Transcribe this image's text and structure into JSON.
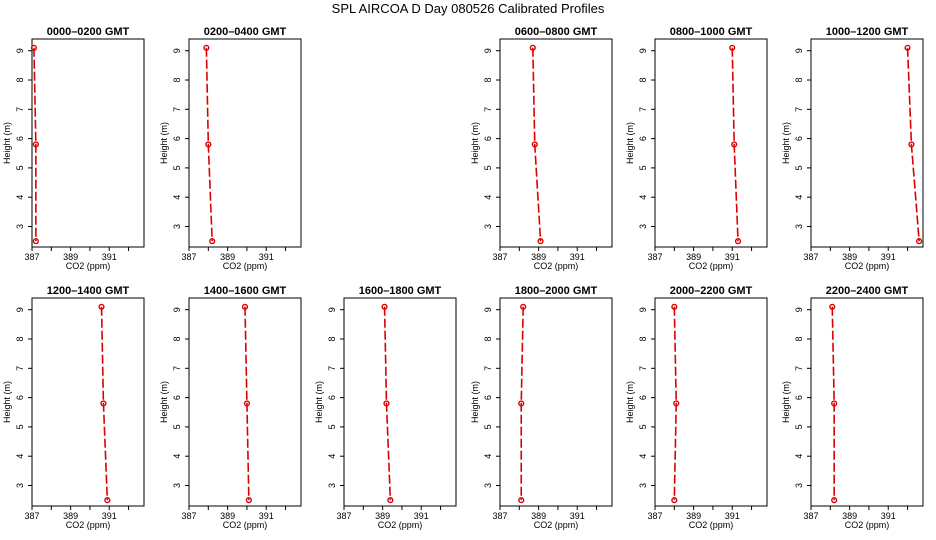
{
  "title": "SPL AIRCOA D  Day 080526  Calibrated Profiles",
  "chart_data": {
    "type": "line",
    "layout": "2x6 panel grid",
    "xlabel": "CO2 (ppm)",
    "ylabel": "Height (m)",
    "xlim": [
      387,
      392.8
    ],
    "ylim": [
      2.3,
      9.4
    ],
    "x_ticks": [
      387,
      388,
      389,
      390,
      391,
      392
    ],
    "x_tick_labels": [
      "387",
      "389",
      "391"
    ],
    "y_ticks": [
      3,
      4,
      5,
      6,
      7,
      8,
      9
    ],
    "line_color": "#dd0000",
    "panels": [
      {
        "title": "0000–0200 GMT",
        "points": [
          {
            "x": 387.1,
            "y": 9.1
          },
          {
            "x": 387.2,
            "y": 5.8
          },
          {
            "x": 387.2,
            "y": 2.5
          }
        ]
      },
      {
        "title": "0200–0400 GMT",
        "points": [
          {
            "x": 387.9,
            "y": 9.1
          },
          {
            "x": 388.0,
            "y": 5.8
          },
          {
            "x": 388.2,
            "y": 2.5
          }
        ]
      },
      {
        "title": "",
        "points": []
      },
      {
        "title": "0600–0800 GMT",
        "points": [
          {
            "x": 388.7,
            "y": 9.1
          },
          {
            "x": 388.8,
            "y": 5.8
          },
          {
            "x": 389.1,
            "y": 2.5
          }
        ]
      },
      {
        "title": "0800–1000 GMT",
        "points": [
          {
            "x": 391.0,
            "y": 9.1
          },
          {
            "x": 391.1,
            "y": 5.8
          },
          {
            "x": 391.3,
            "y": 2.5
          }
        ]
      },
      {
        "title": "1000–1200 GMT",
        "points": [
          {
            "x": 392.0,
            "y": 9.1
          },
          {
            "x": 392.2,
            "y": 5.8
          },
          {
            "x": 392.6,
            "y": 2.5
          }
        ]
      },
      {
        "title": "1200–1400 GMT",
        "points": [
          {
            "x": 390.6,
            "y": 9.1
          },
          {
            "x": 390.7,
            "y": 5.8
          },
          {
            "x": 390.9,
            "y": 2.5
          }
        ]
      },
      {
        "title": "1400–1600 GMT",
        "points": [
          {
            "x": 389.9,
            "y": 9.1
          },
          {
            "x": 390.0,
            "y": 5.8
          },
          {
            "x": 390.1,
            "y": 2.5
          }
        ]
      },
      {
        "title": "1600–1800 GMT",
        "points": [
          {
            "x": 389.1,
            "y": 9.1
          },
          {
            "x": 389.2,
            "y": 5.8
          },
          {
            "x": 389.4,
            "y": 2.5
          }
        ]
      },
      {
        "title": "1800–2000 GMT",
        "points": [
          {
            "x": 388.2,
            "y": 9.1
          },
          {
            "x": 388.1,
            "y": 5.8
          },
          {
            "x": 388.1,
            "y": 2.5
          }
        ]
      },
      {
        "title": "2000–2200 GMT",
        "points": [
          {
            "x": 388.0,
            "y": 9.1
          },
          {
            "x": 388.1,
            "y": 5.8
          },
          {
            "x": 388.0,
            "y": 2.5
          }
        ]
      },
      {
        "title": "2200–2400 GMT",
        "points": [
          {
            "x": 388.1,
            "y": 9.1
          },
          {
            "x": 388.2,
            "y": 5.8
          },
          {
            "x": 388.2,
            "y": 2.5
          }
        ]
      }
    ]
  }
}
